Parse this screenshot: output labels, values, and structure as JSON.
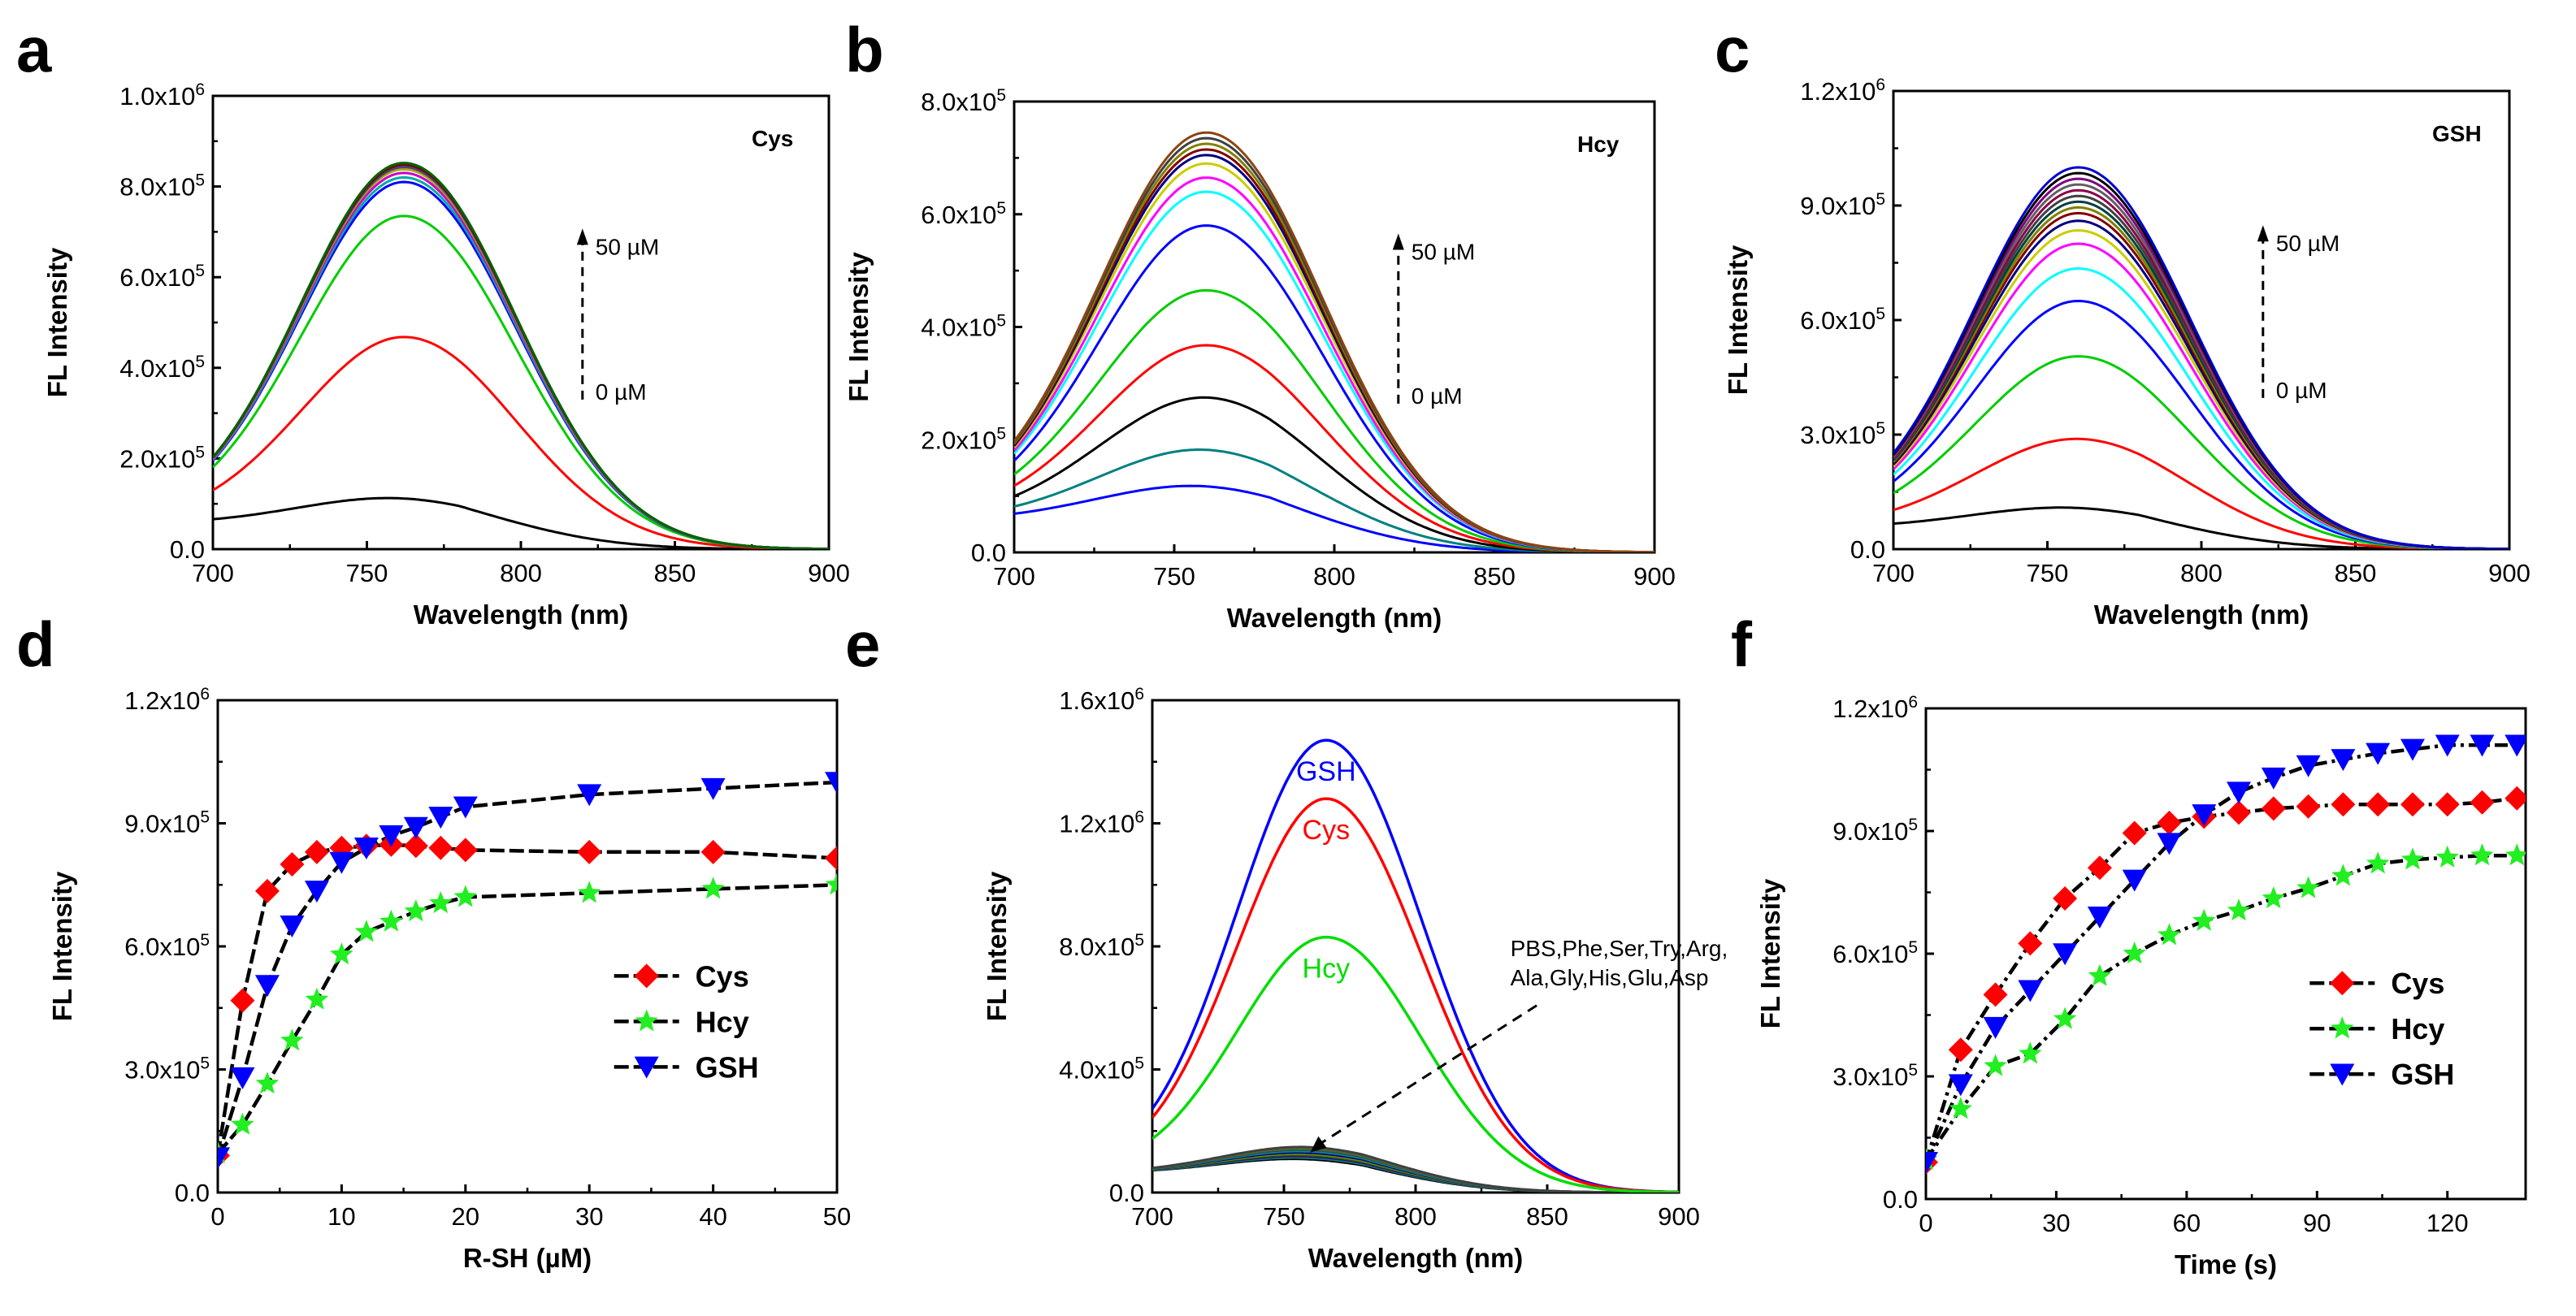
{
  "chart_data": [
    {
      "panel": "a",
      "type": "line",
      "inset_label": "Cys",
      "xlabel": "Wavelength (nm)",
      "ylabel": "FL Intensity",
      "xlim": [
        700,
        900
      ],
      "ylim": [
        0,
        1000000
      ],
      "xticks": [
        "700",
        "750",
        "800",
        "850",
        "900"
      ],
      "yticks": [
        [
          "0.0",
          ""
        ],
        [
          "2.0x10",
          "5"
        ],
        [
          "4.0x10",
          "5"
        ],
        [
          "6.0x10",
          "5"
        ],
        [
          "8.0x10",
          "5"
        ],
        [
          "1.0x10",
          "6"
        ]
      ],
      "annotation": {
        "top": "50 µM",
        "bottom": "0 µM"
      },
      "spectra": {
        "shape": "emission",
        "peak_nm": 762,
        "start_value": 58000,
        "peaks": [
          90000,
          468000,
          735000,
          810000,
          820000,
          830000,
          838000,
          843000,
          848000,
          852000
        ],
        "colors": [
          "#000000",
          "#ff0000",
          "#00cc00",
          "#0000ff",
          "#00aaaa",
          "#cc00cc",
          "#aaaa00",
          "#444488",
          "#800000",
          "#006400"
        ]
      }
    },
    {
      "panel": "b",
      "type": "line",
      "inset_label": "Hcy",
      "xlabel": "Wavelength (nm)",
      "ylabel": "FL Intensity",
      "xlim": [
        700,
        900
      ],
      "ylim": [
        0,
        800000
      ],
      "xticks": [
        "700",
        "750",
        "800",
        "850",
        "900"
      ],
      "yticks": [
        [
          "0.0",
          ""
        ],
        [
          "2.0x10",
          "5"
        ],
        [
          "4.0x10",
          "5"
        ],
        [
          "6.0x10",
          "5"
        ],
        [
          "8.0x10",
          "5"
        ]
      ],
      "annotation": {
        "top": "50 µM",
        "bottom": "0 µM"
      },
      "spectra": {
        "shape": "emission",
        "peak_nm": 760,
        "start_value": 58000,
        "peaks": [
          95000,
          165000,
          265000,
          365000,
          465000,
          580000,
          640000,
          665000,
          690000,
          705000,
          715000,
          725000,
          735000,
          745000
        ],
        "colors": [
          "#0000ff",
          "#008080",
          "#000000",
          "#ff0000",
          "#00cc00",
          "#0000ff",
          "#00ffff",
          "#ff00ff",
          "#cccc00",
          "#000080",
          "#800000",
          "#808000",
          "#404040",
          "#8b4513"
        ]
      }
    },
    {
      "panel": "c",
      "type": "line",
      "inset_label": "GSH",
      "xlabel": "Wavelength (nm)",
      "ylabel": "FL Intensity",
      "xlim": [
        700,
        900
      ],
      "ylim": [
        0,
        1200000
      ],
      "xticks": [
        "700",
        "750",
        "800",
        "850",
        "900"
      ],
      "yticks": [
        [
          "0.0",
          ""
        ],
        [
          "3.0x10",
          "5"
        ],
        [
          "6.0x10",
          "5"
        ],
        [
          "9.0x10",
          "5"
        ],
        [
          "1.2x10",
          "6"
        ]
      ],
      "annotation": {
        "top": "50 µM",
        "bottom": "0 µM"
      },
      "spectra": {
        "shape": "emission",
        "peak_nm": 760,
        "start_value": 58000,
        "peaks": [
          85000,
          280000,
          505000,
          650000,
          735000,
          800000,
          835000,
          860000,
          880000,
          895000,
          910000,
          925000,
          940000,
          955000,
          970000,
          985000,
          1000000
        ],
        "colors": [
          "#000000",
          "#ff0000",
          "#00cc00",
          "#0000ff",
          "#00ffff",
          "#ff00ff",
          "#cccc00",
          "#000080",
          "#800000",
          "#808000",
          "#004040",
          "#404040",
          "#8b0045",
          "#606060",
          "#800080",
          "#000000",
          "#0000cd"
        ]
      }
    },
    {
      "panel": "d",
      "type": "line",
      "xlabel": "R-SH (µM)",
      "ylabel": "FL Intensity",
      "xlim": [
        0,
        50
      ],
      "ylim": [
        0,
        1200000
      ],
      "xticks": [
        "0",
        "10",
        "20",
        "30",
        "40",
        "50"
      ],
      "yticks": [
        [
          "0.0",
          ""
        ],
        [
          "3.0x10",
          "5"
        ],
        [
          "6.0x10",
          "5"
        ],
        [
          "9.0x10",
          "5"
        ],
        [
          "1.2x10",
          "6"
        ]
      ],
      "legend_position": "right",
      "series": [
        {
          "name": "Cys",
          "marker": "diamond",
          "color": "#ff0000",
          "x": [
            0,
            2,
            4,
            6,
            8,
            10,
            12,
            14,
            16,
            18,
            20,
            30,
            40,
            50
          ],
          "y": [
            90000,
            468000,
            735000,
            800000,
            830000,
            840000,
            845000,
            848000,
            845000,
            840000,
            835000,
            830000,
            830000,
            815000
          ]
        },
        {
          "name": "Hcy",
          "marker": "star",
          "color": "#22ee22",
          "x": [
            0,
            2,
            4,
            6,
            8,
            10,
            12,
            14,
            16,
            18,
            20,
            30,
            40,
            50
          ],
          "y": [
            95000,
            165000,
            265000,
            370000,
            470000,
            580000,
            635000,
            660000,
            685000,
            705000,
            720000,
            730000,
            740000,
            750000
          ]
        },
        {
          "name": "GSH",
          "marker": "triangle-down",
          "color": "#0000ff",
          "x": [
            0,
            2,
            4,
            6,
            8,
            10,
            12,
            14,
            16,
            18,
            20,
            30,
            40,
            50
          ],
          "y": [
            85000,
            280000,
            505000,
            650000,
            735000,
            805000,
            840000,
            870000,
            890000,
            915000,
            940000,
            970000,
            985000,
            1000000
          ]
        }
      ]
    },
    {
      "panel": "e",
      "type": "line",
      "xlabel": "Wavelength (nm)",
      "ylabel": "FL Intensity",
      "xlim": [
        700,
        900
      ],
      "ylim": [
        0,
        1600000
      ],
      "xticks": [
        "700",
        "750",
        "800",
        "850",
        "900"
      ],
      "yticks": [
        [
          "0.0",
          ""
        ],
        [
          "4.0x10",
          "5"
        ],
        [
          "8.0x10",
          "5"
        ],
        [
          "1.2x10",
          "6"
        ],
        [
          "1.6x10",
          "6"
        ]
      ],
      "annotation": {
        "line1": "PBS,Phe,Ser,Try,Arg,",
        "line2": "Ala,Gly,His,Glu,Asp"
      },
      "spectra": {
        "shape": "emission",
        "peak_nm": 766,
        "start_value": 65000,
        "curves": [
          {
            "name": "GSH",
            "peak": 1470000,
            "color": "#0000ff"
          },
          {
            "name": "Cys",
            "peak": 1280000,
            "color": "#ff0000"
          },
          {
            "name": "Hcy",
            "peak": 830000,
            "color": "#00dd00"
          }
        ],
        "background_peaks": [
          82000,
          87000,
          92000,
          96000,
          100000,
          105000,
          110000,
          115000,
          120000,
          125000
        ],
        "background_colors": [
          "#000000",
          "#008080",
          "#4b0082",
          "#006400",
          "#808000",
          "#00008b",
          "#008b8b",
          "#2f4f4f",
          "#556b2f",
          "#404040"
        ]
      }
    },
    {
      "panel": "f",
      "type": "line",
      "xlabel": "Time (s)",
      "ylabel": "FL Intensity",
      "xlim": [
        0,
        138
      ],
      "ylim": [
        0,
        1200000
      ],
      "xticks": [
        "0",
        "30",
        "60",
        "90",
        "120"
      ],
      "xtick_values": [
        0,
        30,
        60,
        90,
        120
      ],
      "yticks": [
        [
          "0.0",
          ""
        ],
        [
          "3.0x10",
          "5"
        ],
        [
          "6.0x10",
          "5"
        ],
        [
          "9.0x10",
          "5"
        ],
        [
          "1.2x10",
          "6"
        ]
      ],
      "legend_position": "right",
      "series": [
        {
          "name": "Cys",
          "marker": "diamond",
          "color": "#ff0000",
          "x": [
            0,
            8,
            16,
            24,
            32,
            40,
            48,
            56,
            64,
            72,
            80,
            88,
            96,
            104,
            112,
            120,
            128,
            136
          ],
          "y": [
            90000,
            365000,
            500000,
            625000,
            735000,
            810000,
            895000,
            920000,
            935000,
            945000,
            955000,
            960000,
            965000,
            965000,
            965000,
            965000,
            970000,
            980000
          ]
        },
        {
          "name": "Hcy",
          "marker": "star",
          "color": "#22ee22",
          "x": [
            0,
            8,
            16,
            24,
            32,
            40,
            48,
            56,
            64,
            72,
            80,
            88,
            96,
            104,
            112,
            120,
            128,
            136
          ],
          "y": [
            95000,
            220000,
            325000,
            355000,
            440000,
            545000,
            600000,
            645000,
            680000,
            705000,
            735000,
            760000,
            790000,
            820000,
            830000,
            835000,
            840000,
            840000
          ]
        },
        {
          "name": "GSH",
          "marker": "triangle-down",
          "color": "#0000ff",
          "x": [
            0,
            8,
            16,
            24,
            32,
            40,
            48,
            56,
            64,
            72,
            80,
            88,
            96,
            104,
            112,
            120,
            128,
            136
          ],
          "y": [
            90000,
            280000,
            420000,
            510000,
            600000,
            690000,
            780000,
            870000,
            940000,
            995000,
            1030000,
            1060000,
            1075000,
            1090000,
            1100000,
            1110000,
            1110000,
            1110000
          ]
        }
      ]
    }
  ]
}
